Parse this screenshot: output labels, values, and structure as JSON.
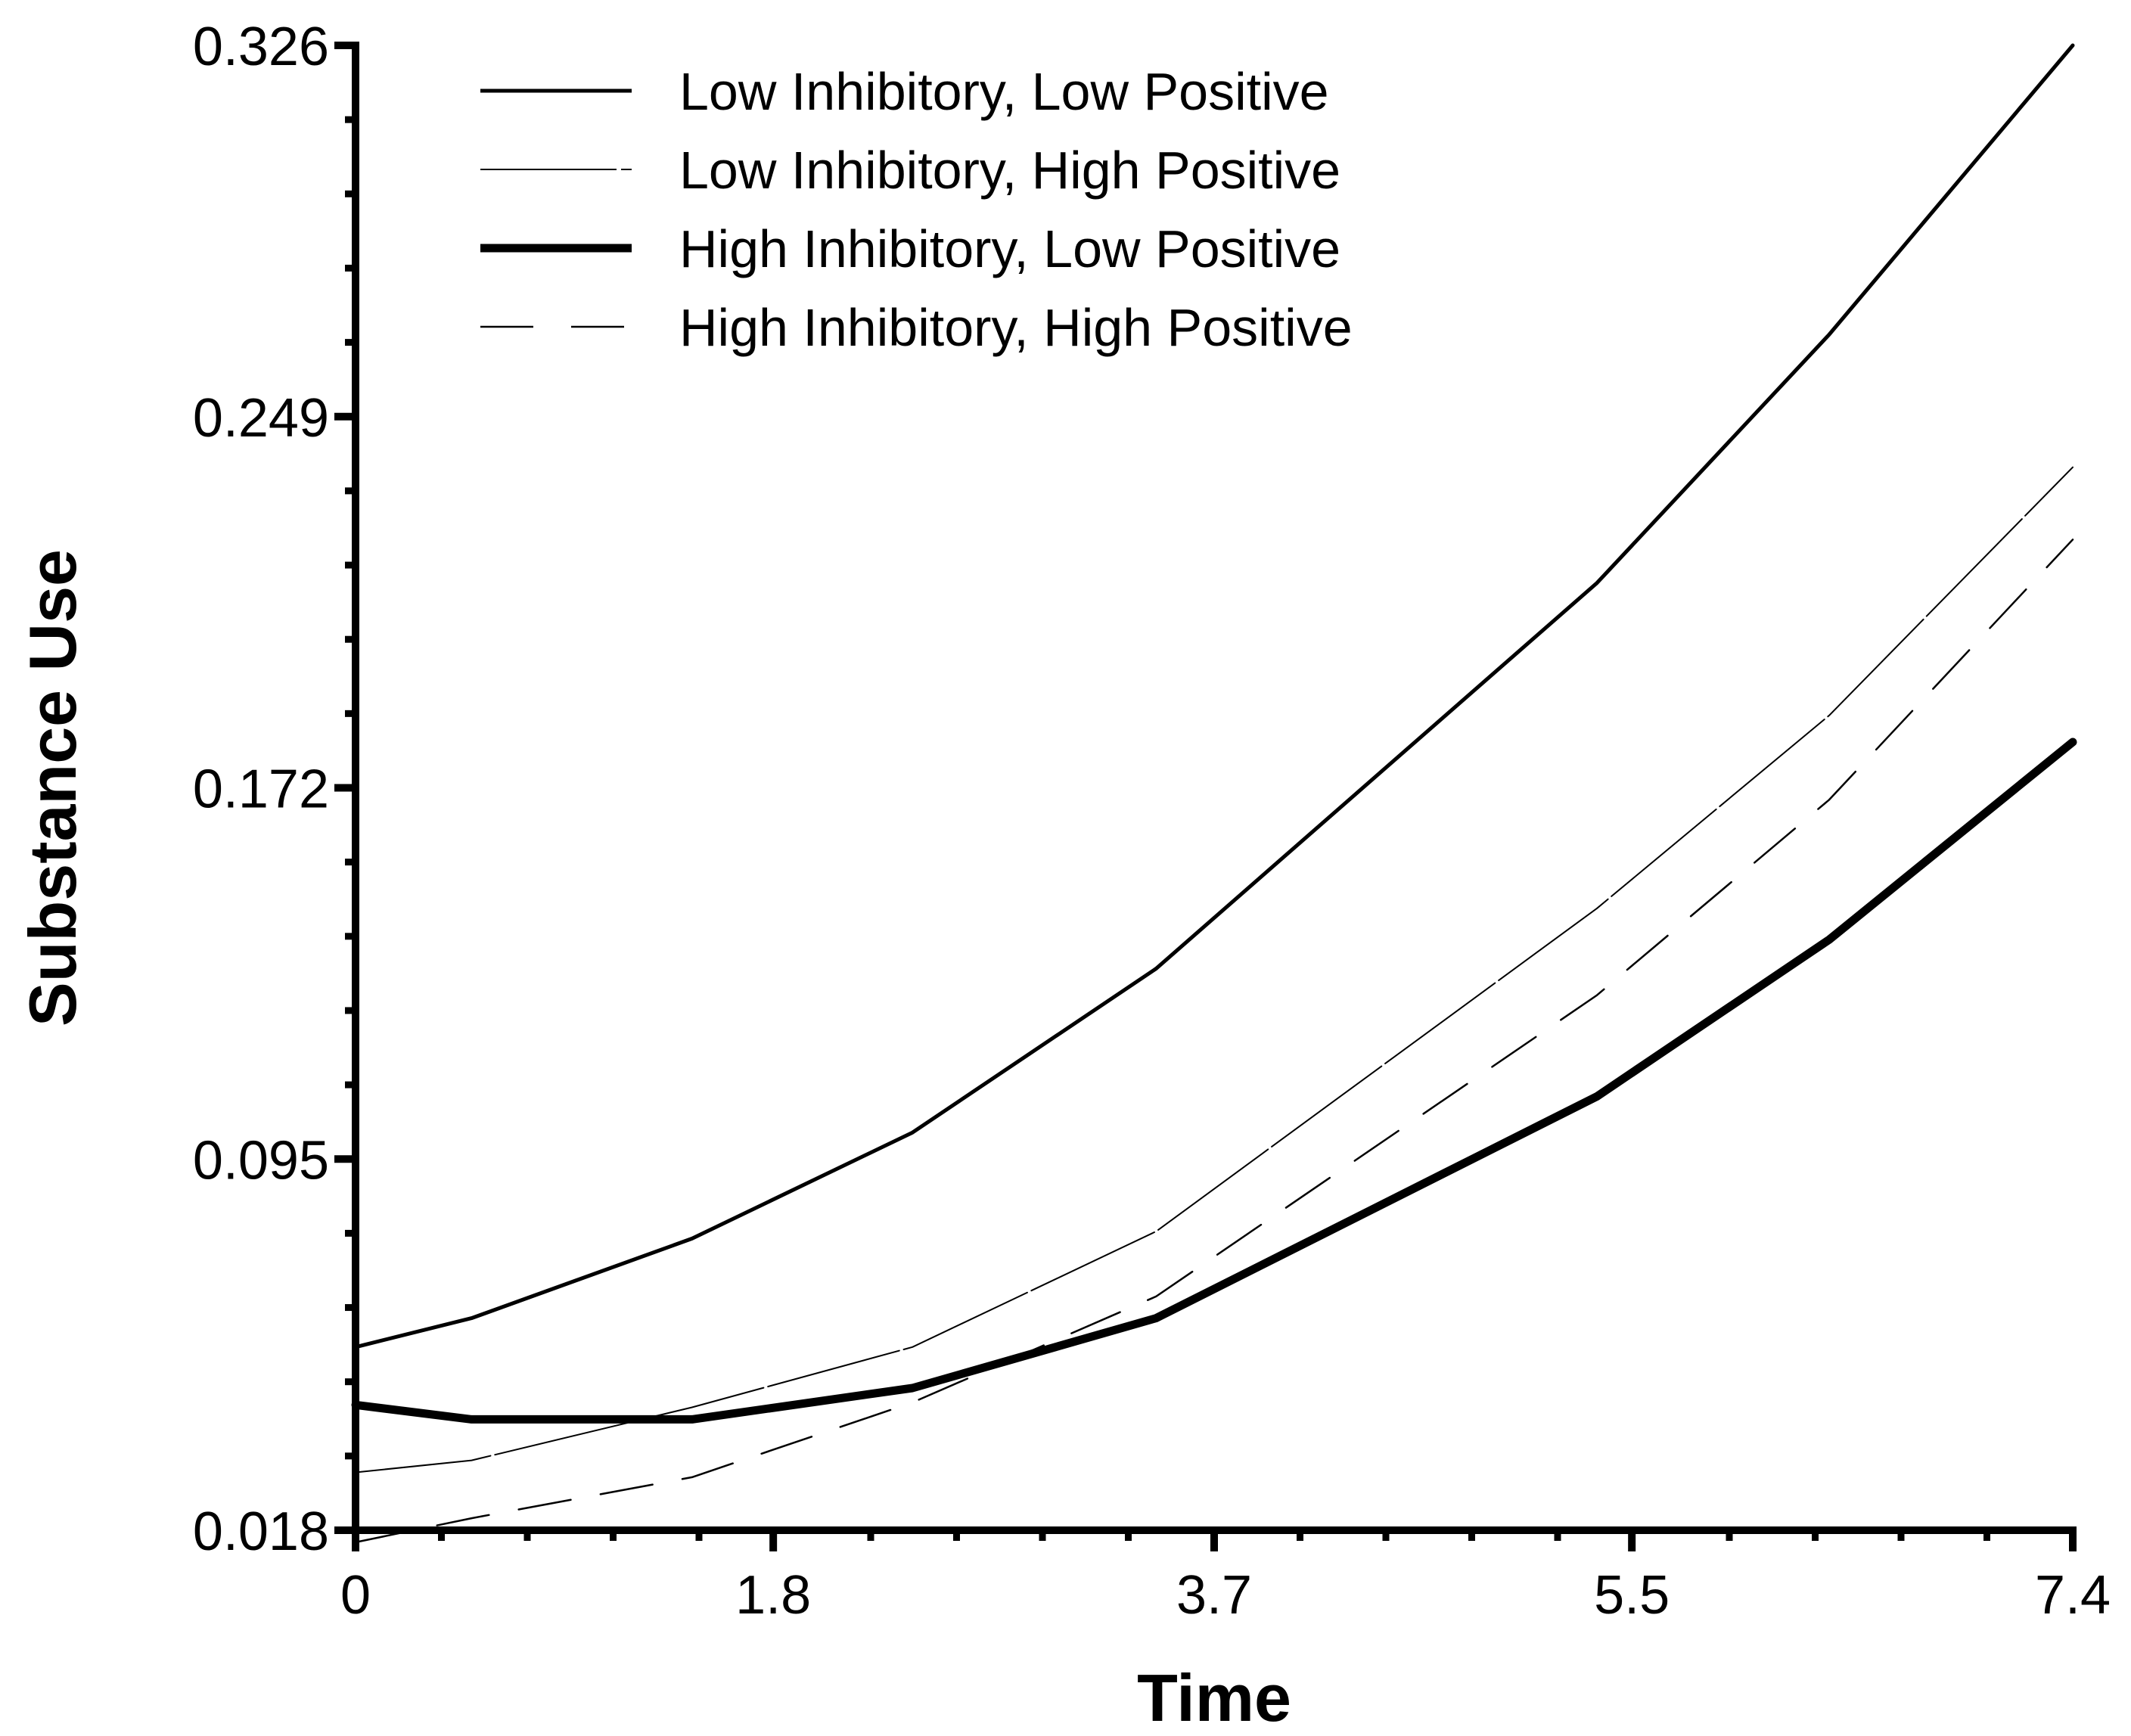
{
  "chart_data": {
    "type": "line",
    "title": "",
    "xlabel": "Time",
    "ylabel": "Substance Use",
    "xlim": [
      0,
      7.4
    ],
    "ylim": [
      0.018,
      0.326
    ],
    "x_ticks": [
      0,
      1.8,
      3.7,
      5.5,
      7.4
    ],
    "x_tick_labels": [
      "0",
      "1.8",
      "3.7",
      "5.5",
      "7.4"
    ],
    "y_ticks": [
      0.018,
      0.095,
      0.172,
      0.249,
      0.326
    ],
    "y_tick_labels": [
      "0.018",
      "0.095",
      "0.172",
      "0.249",
      "0.326"
    ],
    "grid": false,
    "legend_position": "top-left",
    "x": [
      0,
      0.5,
      1.45,
      2.4,
      3.45,
      5.35,
      6.35,
      7.4
    ],
    "series": [
      {
        "name": "Low Inhibitory, Low Positive",
        "style": "solid-thin",
        "values": [
          0.056,
          0.062,
          0.0785,
          0.1005,
          0.1345,
          0.2145,
          0.266,
          0.326
        ]
      },
      {
        "name": "Low Inhibitory, High Positive",
        "style": "dash-thin",
        "values": [
          0.03,
          0.0325,
          0.0435,
          0.056,
          0.08,
          0.147,
          0.187,
          0.2385
        ]
      },
      {
        "name": "High Inhibitory, Low Positive",
        "style": "solid-thick",
        "values": [
          0.044,
          0.041,
          0.041,
          0.0475,
          0.062,
          0.108,
          0.1405,
          0.1815
        ]
      },
      {
        "name": "High Inhibitory, High Positive",
        "style": "dash-long",
        "values": [
          0.0155,
          0.0205,
          0.029,
          0.0445,
          0.0665,
          0.129,
          0.1695,
          0.2235
        ]
      }
    ]
  }
}
